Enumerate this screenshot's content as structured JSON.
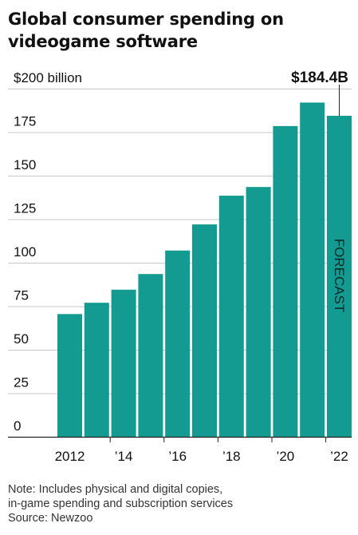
{
  "title_lines": [
    "Global consumer spending on",
    "videogame software"
  ],
  "callout": "$184.4B",
  "notes": [
    "Note: Includes physical and digital copies,",
    "in-game spending and subscription services",
    "Source: Newzoo"
  ],
  "colors": {
    "bar": "#149b91",
    "grid": "#c9c9c9",
    "axis": "#222222",
    "text": "#111111"
  },
  "chart_data": {
    "type": "bar",
    "title": "Global consumer spending on videogame software",
    "categories": [
      "2012",
      "2013",
      "2014",
      "2015",
      "2016",
      "2017",
      "2018",
      "2019",
      "2020",
      "2021",
      "2022"
    ],
    "values": [
      70.5,
      77,
      84.5,
      93.5,
      107,
      122,
      138.5,
      143.5,
      178.5,
      192,
      184.4
    ],
    "x_tick_labels": [
      {
        "category": "2012",
        "label": "2012"
      },
      {
        "category": "2014",
        "label": "’14"
      },
      {
        "category": "2016",
        "label": "’16"
      },
      {
        "category": "2018",
        "label": "’18"
      },
      {
        "category": "2020",
        "label": "’20"
      },
      {
        "category": "2022",
        "label": "’22"
      }
    ],
    "y_ticks": [
      {
        "value": 0,
        "label": "0"
      },
      {
        "value": 25,
        "label": "25"
      },
      {
        "value": 50,
        "label": "50"
      },
      {
        "value": 75,
        "label": "75"
      },
      {
        "value": 100,
        "label": "100"
      },
      {
        "value": 125,
        "label": "125"
      },
      {
        "value": 150,
        "label": "150"
      },
      {
        "value": 175,
        "label": "175"
      },
      {
        "value": 200,
        "label": "$200 billion"
      }
    ],
    "ylim": [
      0,
      200
    ],
    "grid": true,
    "forecast": {
      "category": "2022",
      "label": "FORECAST"
    }
  }
}
